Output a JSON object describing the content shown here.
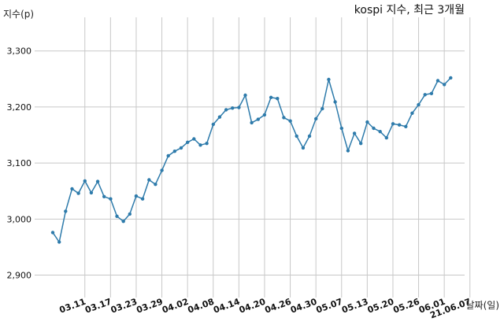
{
  "chart_data": {
    "type": "line",
    "title": "kospi 지수, 최근 3개월",
    "ylabel": "지수(p)",
    "xlabel": "날짜(일)",
    "ylim": [
      2860,
      3360
    ],
    "yticks": [
      2900,
      3000,
      3100,
      3200,
      3300
    ],
    "ytick_labels": [
      "2,900",
      "3,000",
      "3,100",
      "3,200",
      "3,300"
    ],
    "grid": true,
    "xtick_labels": [
      "03.11",
      "03.17",
      "03.23",
      "03.29",
      "04.02",
      "04.08",
      "04.14",
      "04.20",
      "04.26",
      "04.30",
      "05.07",
      "05.13",
      "05.20",
      "05.26",
      "06.01",
      "21.06.07"
    ],
    "xtick_index": [
      5,
      9,
      13,
      17,
      21,
      25,
      29,
      33,
      37,
      41,
      45,
      49,
      53,
      57,
      61,
      65
    ],
    "series": [
      {
        "values": [
          2976,
          2959,
          3014,
          3054,
          3046,
          3068,
          3047,
          3067,
          3040,
          3036,
          3005,
          2996,
          3009,
          3041,
          3036,
          3070,
          3062,
          3087,
          3113,
          3121,
          3127,
          3137,
          3143,
          3132,
          3135,
          3169,
          3182,
          3195,
          3198,
          3199,
          3221,
          3172,
          3178,
          3186,
          3217,
          3215,
          3181,
          3175,
          3148,
          3127,
          3148,
          3179,
          3197,
          3249,
          3209,
          3162,
          3122,
          3153,
          3135,
          3173,
          3162,
          3156,
          3145,
          3170,
          3168,
          3165,
          3189,
          3204,
          3222,
          3224,
          3247,
          3240,
          3252
        ]
      }
    ],
    "line_color": "#2e7bab"
  }
}
